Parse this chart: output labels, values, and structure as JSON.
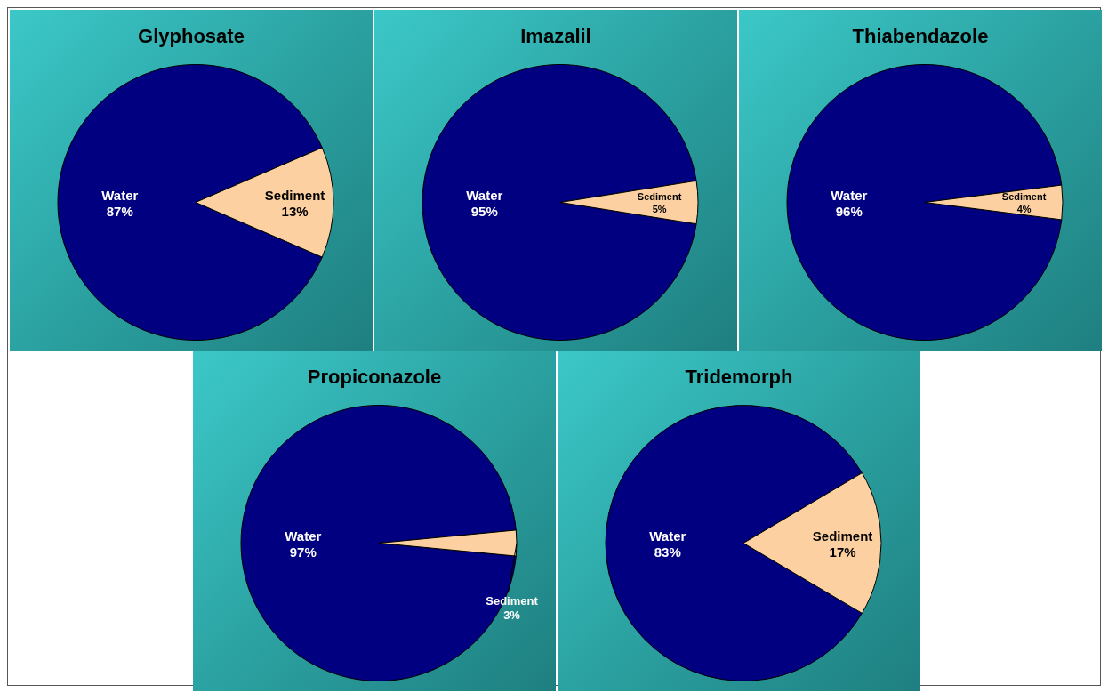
{
  "chart_data": [
    {
      "type": "pie",
      "title": "Glyphosate",
      "categories": [
        "Water",
        "Sediment"
      ],
      "values": [
        87,
        13
      ],
      "value_labels": [
        "87%",
        "13%"
      ],
      "colors": [
        "#000080",
        "#fcd0a0"
      ]
    },
    {
      "type": "pie",
      "title": "Imazalil",
      "categories": [
        "Water",
        "Sediment"
      ],
      "values": [
        95,
        5
      ],
      "value_labels": [
        "95%",
        "5%"
      ],
      "colors": [
        "#000080",
        "#fcd0a0"
      ]
    },
    {
      "type": "pie",
      "title": "Thiabendazole",
      "categories": [
        "Water",
        "Sediment"
      ],
      "values": [
        96,
        4
      ],
      "value_labels": [
        "96%",
        "4%"
      ],
      "colors": [
        "#000080",
        "#fcd0a0"
      ]
    },
    {
      "type": "pie",
      "title": "Propiconazole",
      "categories": [
        "Water",
        "Sediment"
      ],
      "values": [
        97,
        3
      ],
      "value_labels": [
        "97%",
        "3%"
      ],
      "colors": [
        "#000080",
        "#fcd0a0"
      ]
    },
    {
      "type": "pie",
      "title": "Tridemorph",
      "categories": [
        "Water",
        "Sediment"
      ],
      "values": [
        83,
        17
      ],
      "value_labels": [
        "83%",
        "17%"
      ],
      "colors": [
        "#000080",
        "#fcd0a0"
      ]
    }
  ]
}
